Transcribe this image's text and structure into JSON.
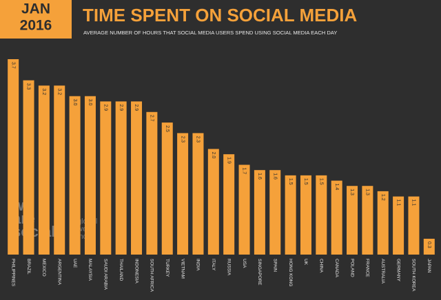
{
  "chart_data": {
    "type": "bar",
    "badge": [
      "JAN",
      "2016"
    ],
    "title": "TIME SPENT ON SOCIAL MEDIA",
    "subtitle": "AVERAGE NUMBER OF HOURS THAT SOCIAL MEDIA USERS SPEND USING SOCIAL MEDIA EACH DAY",
    "watermarks": [
      [
        "we",
        "are",
        "social"
      ],
      [
        "global",
        "web",
        "index"
      ]
    ],
    "color": "#f5a13a",
    "categories": [
      "PHILIPPINES",
      "BRAZIL",
      "MEXICO",
      "ARGENTINA",
      "UAE",
      "MALAYSIA",
      "SAUDI ARABIA",
      "THAILAND",
      "INDONESIA",
      "SOUTH AFRICA",
      "TURKEY",
      "VIETNAM",
      "INDIA",
      "ITALY",
      "RUSSIA",
      "USA",
      "SINGAPORE",
      "SPAIN",
      "HONG KONG",
      "UK",
      "CHINA",
      "CANADA",
      "POLAND",
      "FRANCE",
      "AUSTRALIA",
      "GERMANY",
      "SOUTH KOREA",
      "JAPAN"
    ],
    "values": [
      3.7,
      3.3,
      3.2,
      3.2,
      3.0,
      3.0,
      2.9,
      2.9,
      2.9,
      2.7,
      2.5,
      2.3,
      2.3,
      2.0,
      1.9,
      1.7,
      1.6,
      1.6,
      1.5,
      1.5,
      1.5,
      1.4,
      1.3,
      1.3,
      1.2,
      1.1,
      1.1,
      0.3
    ],
    "value_labels": [
      "3.7",
      "3.3",
      "3.2",
      "3.2",
      "3.0",
      "3.0",
      "2.9",
      "2.9",
      "2.9",
      "2.7",
      "2.5",
      "2.3",
      "2.3",
      "2.0",
      "1.9",
      "1.7",
      "1.6",
      "1.6",
      "1.5",
      "1.5",
      "1.5",
      "1.4",
      "1.3",
      "1.3",
      "1.2",
      "1.1",
      "1.1",
      "0.3"
    ]
  }
}
